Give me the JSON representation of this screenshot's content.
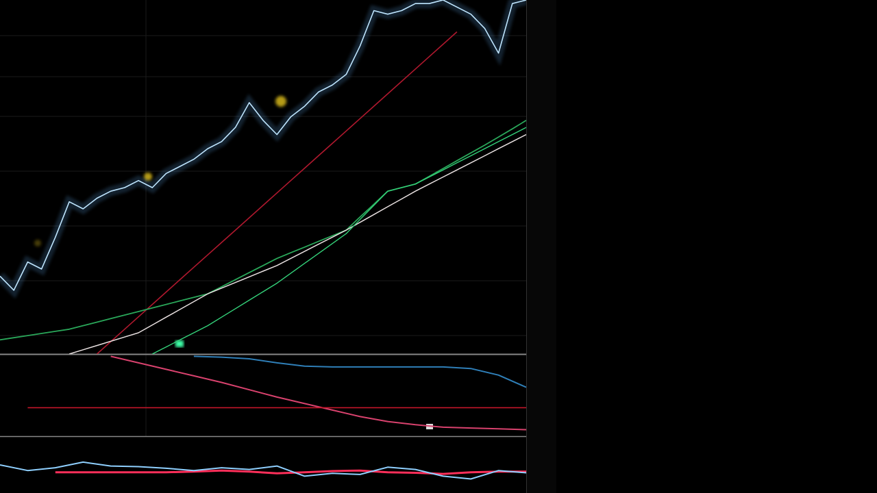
{
  "chart_data": [
    {
      "type": "line",
      "ylim": [
        0,
        100
      ],
      "series": [
        {
          "color": "#bfe6ff",
          "values": [
            22,
            18,
            26,
            24,
            33,
            43,
            41,
            44,
            46,
            47,
            49,
            47,
            51,
            53,
            55,
            58,
            60,
            64,
            71,
            66,
            62,
            67,
            70,
            74,
            76,
            79,
            87,
            97,
            96,
            97,
            99,
            99,
            100,
            98,
            96,
            92,
            85,
            99,
            100
          ]
        },
        {
          "color": "#b0182e",
          "values": [
            null,
            null,
            null,
            null,
            null,
            null,
            null,
            0,
            3.5,
            7,
            10.5,
            14,
            17.5,
            21,
            24.5,
            28,
            31.5,
            35,
            38.5,
            42,
            45.5,
            49,
            52.5,
            56,
            59.5,
            63,
            66.5,
            70,
            73.5,
            77,
            80.5,
            84,
            87.5,
            91,
            null,
            null,
            null,
            null,
            null
          ]
        },
        {
          "color": "#2aa85a",
          "values": [
            4,
            4.6,
            5.2,
            5.8,
            6.4,
            7,
            8,
            9,
            10,
            11,
            12,
            13,
            14,
            15,
            16,
            17,
            19,
            21,
            23,
            25,
            27,
            28.6,
            30.2,
            31.8,
            33.4,
            35,
            38.7,
            42.3,
            46,
            47,
            48,
            50.2,
            52.4,
            54.6,
            56.8,
            59,
            61.3,
            63.6,
            66
          ]
        },
        {
          "color": "#e8e0e0",
          "values": [
            null,
            null,
            null,
            null,
            null,
            0,
            1.2,
            2.4,
            3.6,
            4.8,
            6,
            8.2,
            10.4,
            12.6,
            14.8,
            17,
            18.6,
            20.2,
            21.8,
            23.4,
            25,
            27,
            29,
            31,
            33,
            35,
            37.2,
            39.4,
            41.6,
            43.8,
            46,
            48,
            50,
            52,
            54,
            56,
            58,
            60,
            62
          ]
        },
        {
          "color": "#34d27a",
          "values": [
            null,
            null,
            null,
            null,
            null,
            null,
            null,
            null,
            null,
            null,
            null,
            0,
            2,
            4,
            6,
            8,
            10.4,
            12.8,
            15.2,
            17.6,
            20,
            22.8,
            25.6,
            28.4,
            31.2,
            34,
            38,
            42,
            46,
            47,
            48,
            50,
            52,
            54,
            56,
            58,
            60,
            62,
            64
          ]
        }
      ]
    },
    {
      "type": "line",
      "ylim": [
        0,
        100
      ],
      "series": [
        {
          "color": "#2f7fb8",
          "values": [
            null,
            null,
            null,
            null,
            null,
            null,
            null,
            98,
            97,
            95,
            90,
            86,
            85,
            85,
            85,
            85,
            85,
            83,
            75,
            60
          ]
        },
        {
          "color": "#d9426e",
          "values": [
            null,
            null,
            null,
            null,
            98,
            90,
            82,
            74,
            66,
            57,
            48,
            40,
            32,
            24,
            18,
            14,
            11,
            10,
            9,
            8
          ]
        },
        {
          "color": "#c4162a",
          "values": [
            null,
            35,
            35,
            35,
            35,
            35,
            35,
            35,
            35,
            35,
            35,
            35,
            35,
            35,
            35,
            35,
            35,
            35,
            35,
            35
          ]
        }
      ]
    },
    {
      "type": "line",
      "ylim": [
        0,
        100
      ],
      "series": [
        {
          "color": "#ff2f5a",
          "values": [
            null,
            null,
            37,
            37,
            37,
            37,
            37,
            38,
            40,
            38,
            35,
            37,
            39,
            40,
            37,
            36,
            34,
            37,
            38,
            38
          ]
        },
        {
          "color": "#8fd0ff",
          "values": [
            50,
            40,
            45,
            55,
            48,
            47,
            44,
            40,
            45,
            42,
            48,
            30,
            35,
            33,
            46,
            42,
            30,
            25,
            40,
            36
          ]
        }
      ]
    }
  ]
}
